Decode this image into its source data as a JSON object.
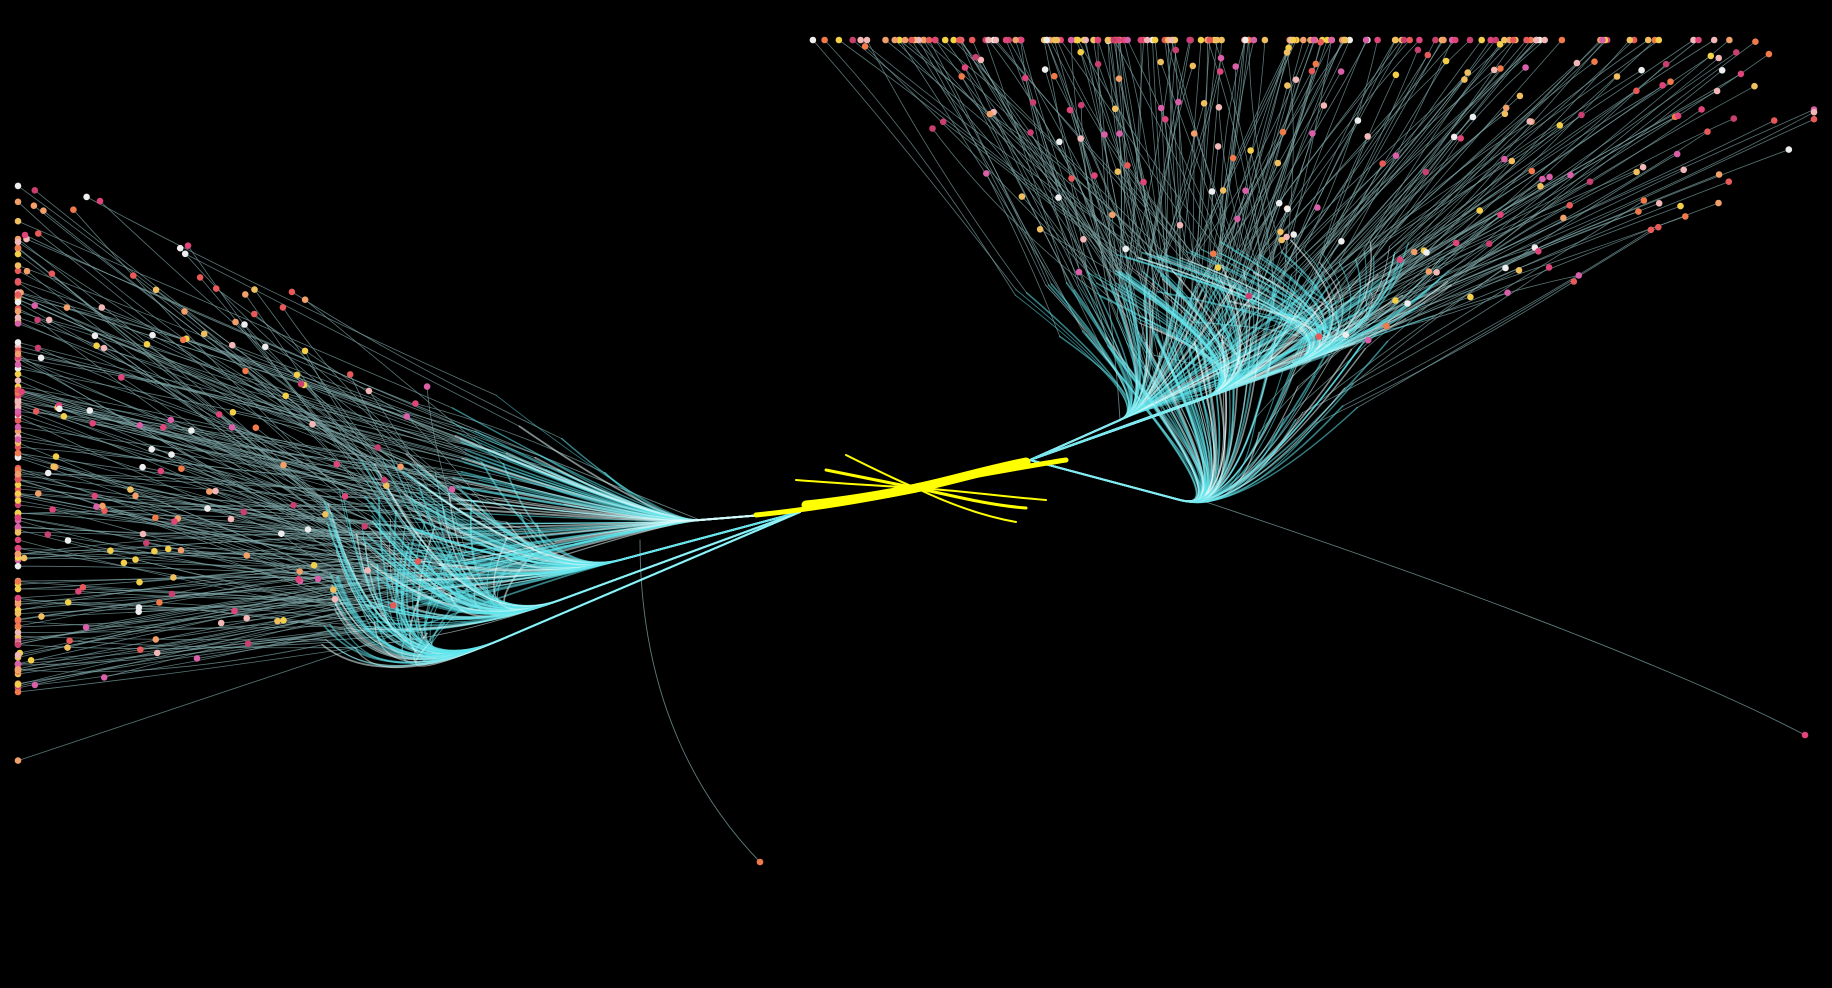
{
  "diagram": {
    "type": "bilateral-branching-network",
    "labels_visible": false,
    "background_color": "#000000",
    "colors": {
      "trunk": "#ffff00",
      "inner_branch": "#5fe6ec",
      "bright_branch": "#e8fbfb",
      "outer_branch": "#7fa7a8"
    },
    "leaf_palette": [
      "#e0457a",
      "#e85a5a",
      "#f07a4a",
      "#f2a06a",
      "#f0c060",
      "#f4d04a",
      "#f2b8b8",
      "#d85fa8",
      "#eeeeee",
      "#c94070"
    ],
    "hemispheres": [
      {
        "name": "left",
        "leaf_count": 300
      },
      {
        "name": "right",
        "leaf_count": 330
      }
    ]
  }
}
